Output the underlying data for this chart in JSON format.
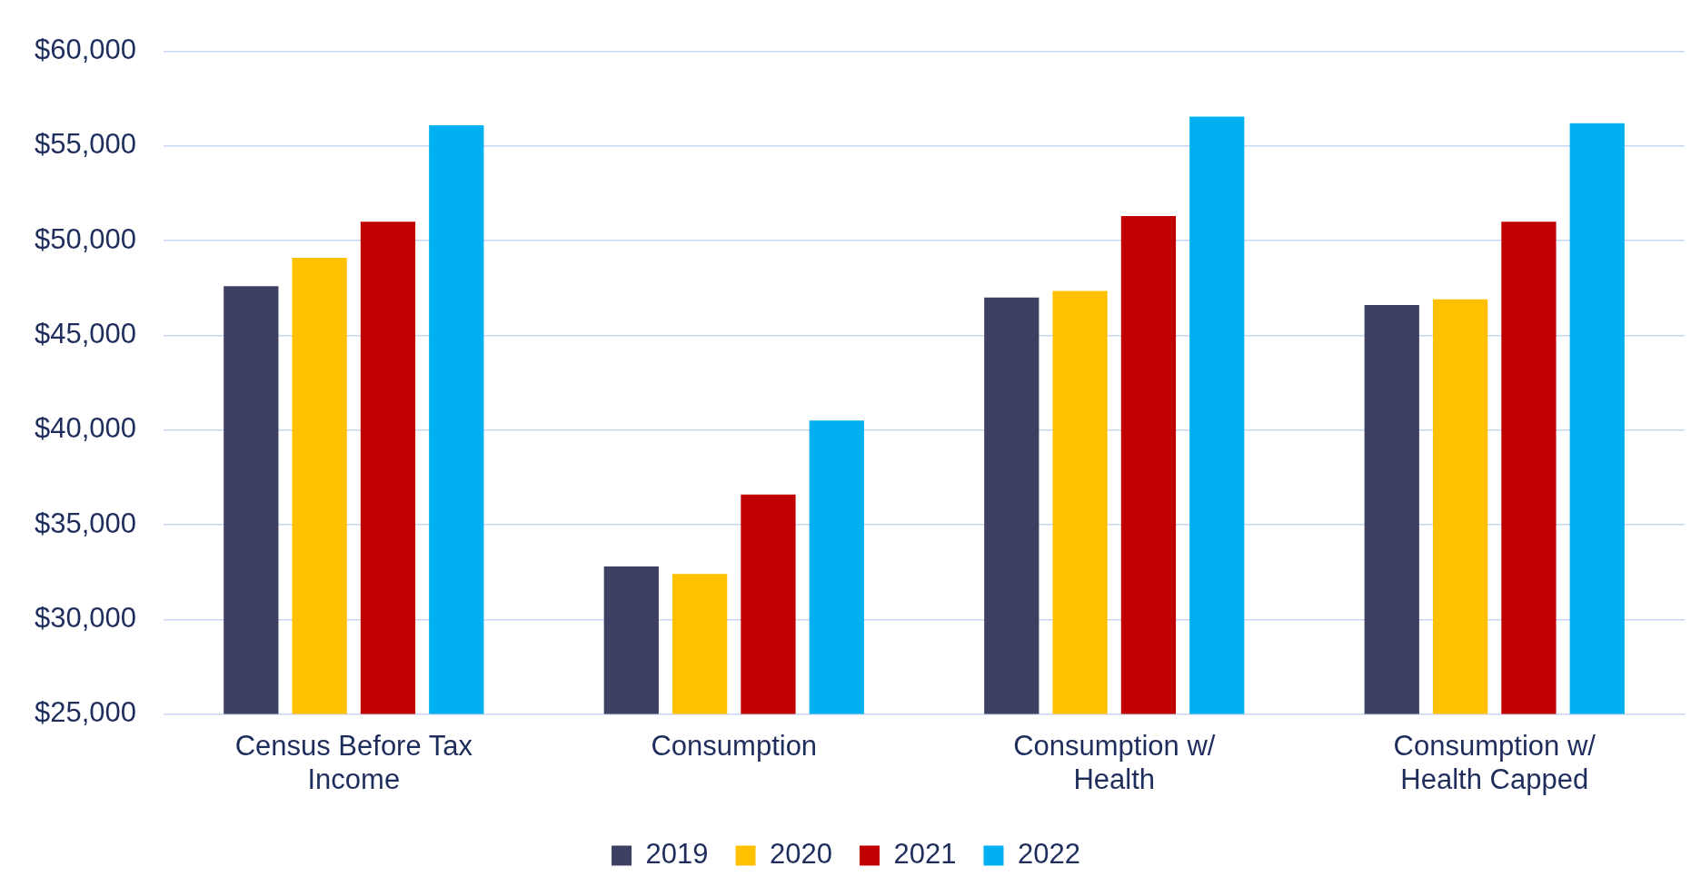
{
  "chart_data": {
    "type": "bar",
    "categories": [
      "Census Before Tax Income",
      "Consumption",
      "Consumption w/ Health",
      "Consumption w/ Health Capped"
    ],
    "series": [
      {
        "name": "2019",
        "color": "#3d3f63",
        "values": [
          47600,
          32800,
          47000,
          46600
        ]
      },
      {
        "name": "2020",
        "color": "#ffc000",
        "values": [
          49100,
          32400,
          47350,
          46900
        ]
      },
      {
        "name": "2021",
        "color": "#c00000",
        "values": [
          51000,
          36600,
          51300,
          51000
        ]
      },
      {
        "name": "2022",
        "color": "#00b0f0",
        "values": [
          56100,
          40500,
          56550,
          56200
        ]
      }
    ],
    "ylim": [
      25000,
      60000
    ],
    "yticks": [
      {
        "value": 25000,
        "label": "$25,000"
      },
      {
        "value": 30000,
        "label": "$30,000"
      },
      {
        "value": 35000,
        "label": "$35,000"
      },
      {
        "value": 40000,
        "label": "$40,000"
      },
      {
        "value": 45000,
        "label": "$45,000"
      },
      {
        "value": 50000,
        "label": "$50,000"
      },
      {
        "value": 55000,
        "label": "$55,000"
      },
      {
        "value": 60000,
        "label": "$60,000"
      }
    ],
    "grid": "y",
    "legend": "bottom"
  }
}
